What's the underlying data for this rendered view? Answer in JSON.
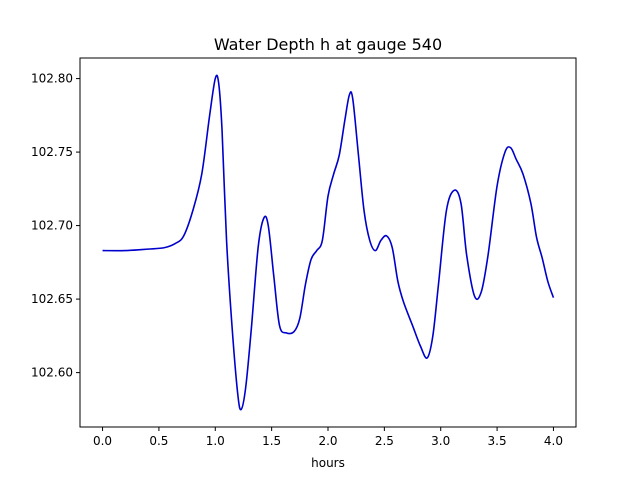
{
  "chart_data": {
    "type": "line",
    "title": "Water Depth h at gauge 540",
    "xlabel": "hours",
    "ylabel": "",
    "xlim": [
      -0.2,
      4.2
    ],
    "ylim": [
      102.563,
      102.814
    ],
    "xticks": [
      0.0,
      0.5,
      1.0,
      1.5,
      2.0,
      2.5,
      3.0,
      3.5,
      4.0
    ],
    "xtick_labels": [
      "0.0",
      "0.5",
      "1.0",
      "1.5",
      "2.0",
      "2.5",
      "3.0",
      "3.5",
      "4.0"
    ],
    "yticks": [
      102.6,
      102.65,
      102.7,
      102.75,
      102.8
    ],
    "ytick_labels": [
      "102.60",
      "102.65",
      "102.70",
      "102.75",
      "102.80"
    ],
    "grid": false,
    "series": [
      {
        "name": "",
        "color": "#0000cc",
        "x": [
          0.0,
          0.2,
          0.4,
          0.55,
          0.65,
          0.72,
          0.8,
          0.88,
          0.95,
          1.0,
          1.03,
          1.06,
          1.1,
          1.15,
          1.2,
          1.23,
          1.27,
          1.32,
          1.38,
          1.43,
          1.47,
          1.52,
          1.57,
          1.63,
          1.7,
          1.75,
          1.8,
          1.85,
          1.9,
          1.95,
          2.0,
          2.05,
          2.1,
          2.15,
          2.19,
          2.22,
          2.27,
          2.32,
          2.37,
          2.42,
          2.47,
          2.52,
          2.57,
          2.62,
          2.67,
          2.75,
          2.82,
          2.88,
          2.93,
          2.98,
          3.05,
          3.12,
          3.18,
          3.23,
          3.3,
          3.36,
          3.42,
          3.5,
          3.57,
          3.62,
          3.67,
          3.73,
          3.8,
          3.85,
          3.9,
          3.95,
          4.0
        ],
        "y": [
          102.683,
          102.683,
          102.684,
          102.685,
          102.688,
          102.693,
          102.71,
          102.735,
          102.775,
          102.8,
          102.797,
          102.765,
          102.69,
          102.63,
          102.585,
          102.575,
          102.59,
          102.63,
          102.685,
          102.705,
          102.7,
          102.665,
          102.632,
          102.627,
          102.628,
          102.637,
          102.66,
          102.677,
          102.683,
          102.69,
          102.72,
          102.735,
          102.748,
          102.772,
          102.789,
          102.786,
          102.748,
          102.71,
          102.69,
          102.683,
          102.69,
          102.693,
          102.685,
          102.662,
          102.648,
          102.632,
          102.618,
          102.61,
          102.625,
          102.66,
          102.71,
          102.724,
          102.715,
          102.68,
          102.652,
          102.655,
          102.68,
          102.727,
          102.75,
          102.753,
          102.745,
          102.735,
          102.715,
          102.692,
          102.678,
          102.662,
          102.651
        ]
      }
    ]
  }
}
